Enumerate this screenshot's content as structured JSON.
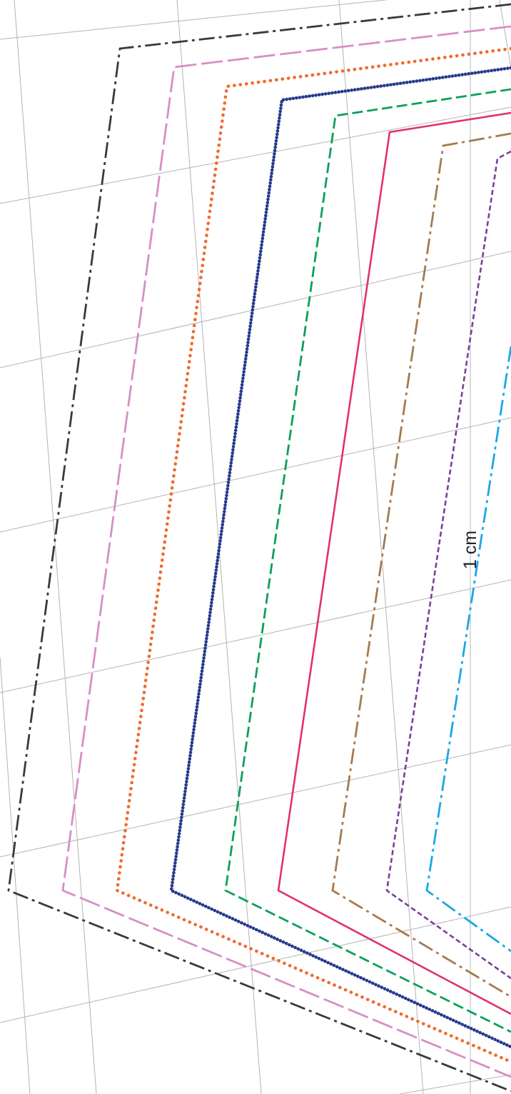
{
  "dimension_label": "1 cm",
  "grid": {
    "color": "#b3b3b3"
  },
  "reference_line": {
    "color": "#b9c9c6"
  },
  "outlines": [
    {
      "name": "outline-size-1",
      "color": "#3a3a3a",
      "dash": "dash-dot"
    },
    {
      "name": "outline-size-2",
      "color": "#d68fc6",
      "dash": "long-dash"
    },
    {
      "name": "outline-size-3",
      "color": "#ef6a2b",
      "dash": "dotted"
    },
    {
      "name": "outline-size-4",
      "color": "#283a8e",
      "dash": "dense-dot"
    },
    {
      "name": "outline-size-5",
      "color": "#0aa05a",
      "dash": "dash"
    },
    {
      "name": "outline-size-6",
      "color": "#e0336b",
      "dash": "solid"
    },
    {
      "name": "outline-size-7",
      "color": "#a57a50",
      "dash": "dash-dot"
    },
    {
      "name": "outline-size-8",
      "color": "#7b3f98",
      "dash": "short-dash"
    },
    {
      "name": "outline-size-9",
      "color": "#1aa7e6",
      "dash": "dash-dot"
    }
  ]
}
